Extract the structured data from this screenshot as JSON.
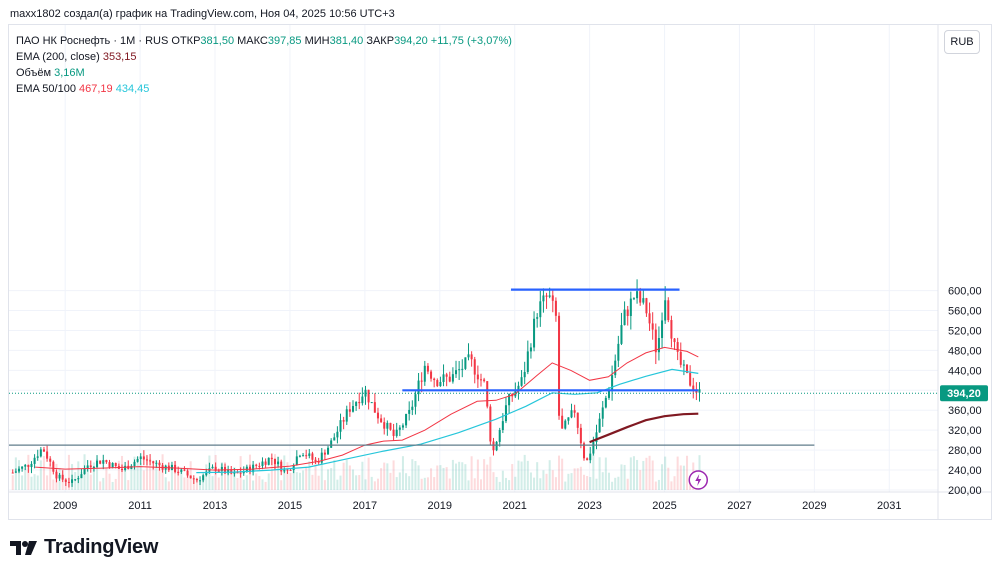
{
  "caption": "maxx1802 создал(а) график на TradingView.com, Ноя 04, 2025 10:56 UTC+3",
  "legend": {
    "symbol": "ПАО НК Роснефть · 1М · RUS",
    "open_label": "ОТКР",
    "open": "381,50",
    "high_label": "МАКС",
    "high": "397,85",
    "low_label": "МИН",
    "low": "381,40",
    "close_label": "ЗАКР",
    "close": "394,20",
    "change": "+11,75 (+3,07%)",
    "ema200_label": "EMA (200, close)",
    "ema200_value": "353,15",
    "volume_label": "Объём",
    "volume_value": "3,16M",
    "ema50100_label": "EMA 50/100",
    "ema50_value": "467,19",
    "ema100_value": "434,45"
  },
  "currency_button": "RUB",
  "brand": "TradingView",
  "icons": {
    "logo": "tradingview-logo-icon",
    "flash": "lightning-icon"
  },
  "colors": {
    "up": "#089981",
    "down": "#f23645",
    "ema50": "#f23645",
    "ema100": "#26c6da",
    "ema200": "#801922",
    "hline": "#2962ff",
    "price_tag": "#089981"
  },
  "chart_data": {
    "type": "candlestick",
    "instrument": "ПАО НК Роснефть",
    "timeframe": "1М",
    "ylim": [
      200,
      640
    ],
    "xlim": [
      2007.5,
      2032.3
    ],
    "yticks": [
      "200,00",
      "240,00",
      "280,00",
      "320,00",
      "360,00",
      "400,00",
      "440,00",
      "480,00",
      "520,00",
      "560,00",
      "600,00"
    ],
    "xticks": [
      "2009",
      "2011",
      "2013",
      "2015",
      "2017",
      "2019",
      "2021",
      "2023",
      "2025",
      "2027",
      "2029",
      "2031"
    ],
    "last_price": "394,20",
    "price_path": [
      [
        2007.6,
        235
      ],
      [
        2008.0,
        250
      ],
      [
        2008.4,
        285
      ],
      [
        2008.8,
        225
      ],
      [
        2009.2,
        215
      ],
      [
        2009.6,
        250
      ],
      [
        2010.0,
        260
      ],
      [
        2010.5,
        240
      ],
      [
        2011.0,
        265
      ],
      [
        2011.5,
        250
      ],
      [
        2012.0,
        240
      ],
      [
        2012.5,
        220
      ],
      [
        2013.0,
        245
      ],
      [
        2013.5,
        230
      ],
      [
        2014.0,
        245
      ],
      [
        2014.5,
        265
      ],
      [
        2014.9,
        235
      ],
      [
        2015.3,
        280
      ],
      [
        2015.7,
        255
      ],
      [
        2016.1,
        295
      ],
      [
        2016.6,
        365
      ],
      [
        2017.0,
        400
      ],
      [
        2017.3,
        355
      ],
      [
        2017.8,
        305
      ],
      [
        2018.2,
        355
      ],
      [
        2018.6,
        450
      ],
      [
        2018.9,
        420
      ],
      [
        2019.3,
        425
      ],
      [
        2019.8,
        460
      ],
      [
        2020.2,
        410
      ],
      [
        2020.4,
        270
      ],
      [
        2020.8,
        375
      ],
      [
        2021.2,
        420
      ],
      [
        2021.6,
        560
      ],
      [
        2021.9,
        590
      ],
      [
        2022.1,
        545
      ],
      [
        2022.2,
        310
      ],
      [
        2022.6,
        360
      ],
      [
        2022.9,
        250
      ],
      [
        2023.2,
        320
      ],
      [
        2023.6,
        430
      ],
      [
        2023.9,
        545
      ],
      [
        2024.2,
        590
      ],
      [
        2024.5,
        565
      ],
      [
        2024.8,
        475
      ],
      [
        2025.0,
        600
      ],
      [
        2025.3,
        470
      ],
      [
        2025.6,
        425
      ],
      [
        2025.9,
        394
      ]
    ],
    "ema50": [
      [
        2008.2,
        246
      ],
      [
        2009,
        242
      ],
      [
        2010,
        244
      ],
      [
        2011,
        247
      ],
      [
        2012,
        244
      ],
      [
        2013,
        240
      ],
      [
        2014,
        242
      ],
      [
        2015,
        248
      ],
      [
        2015.8,
        258
      ],
      [
        2016.4,
        270
      ],
      [
        2017,
        290
      ],
      [
        2017.5,
        298
      ],
      [
        2018,
        300
      ],
      [
        2018.6,
        320
      ],
      [
        2019.3,
        352
      ],
      [
        2020,
        378
      ],
      [
        2020.5,
        380
      ],
      [
        2021,
        392
      ],
      [
        2021.6,
        430
      ],
      [
        2022,
        455
      ],
      [
        2022.5,
        440
      ],
      [
        2023,
        420
      ],
      [
        2023.5,
        427
      ],
      [
        2024,
        455
      ],
      [
        2024.5,
        475
      ],
      [
        2025,
        486
      ],
      [
        2025.6,
        478
      ],
      [
        2025.9,
        467
      ]
    ],
    "ema100": [
      [
        2012.5,
        235
      ],
      [
        2013.5,
        236
      ],
      [
        2014.5,
        240
      ],
      [
        2015.5,
        246
      ],
      [
        2016.5,
        262
      ],
      [
        2017.5,
        278
      ],
      [
        2018.5,
        292
      ],
      [
        2019.5,
        315
      ],
      [
        2020.5,
        342
      ],
      [
        2021.3,
        368
      ],
      [
        2022,
        395
      ],
      [
        2022.6,
        392
      ],
      [
        2023.2,
        395
      ],
      [
        2023.8,
        412
      ],
      [
        2024.5,
        428
      ],
      [
        2025.2,
        442
      ],
      [
        2025.9,
        434
      ]
    ],
    "ema200": [
      [
        2023.0,
        296
      ],
      [
        2023.5,
        311
      ],
      [
        2024,
        326
      ],
      [
        2024.5,
        340
      ],
      [
        2025,
        348
      ],
      [
        2025.5,
        352
      ],
      [
        2025.9,
        353
      ]
    ],
    "horizontal_lines": [
      {
        "y": 602,
        "x_start": 2020.9,
        "x_end": 2025.4,
        "color": "#2962ff"
      },
      {
        "y": 400,
        "x_start": 2018.0,
        "x_end": 2025.9,
        "color": "#2962ff"
      },
      {
        "y": 290,
        "x_start": 2007.5,
        "x_end": 2029.0,
        "color": "#607d8b"
      }
    ]
  }
}
